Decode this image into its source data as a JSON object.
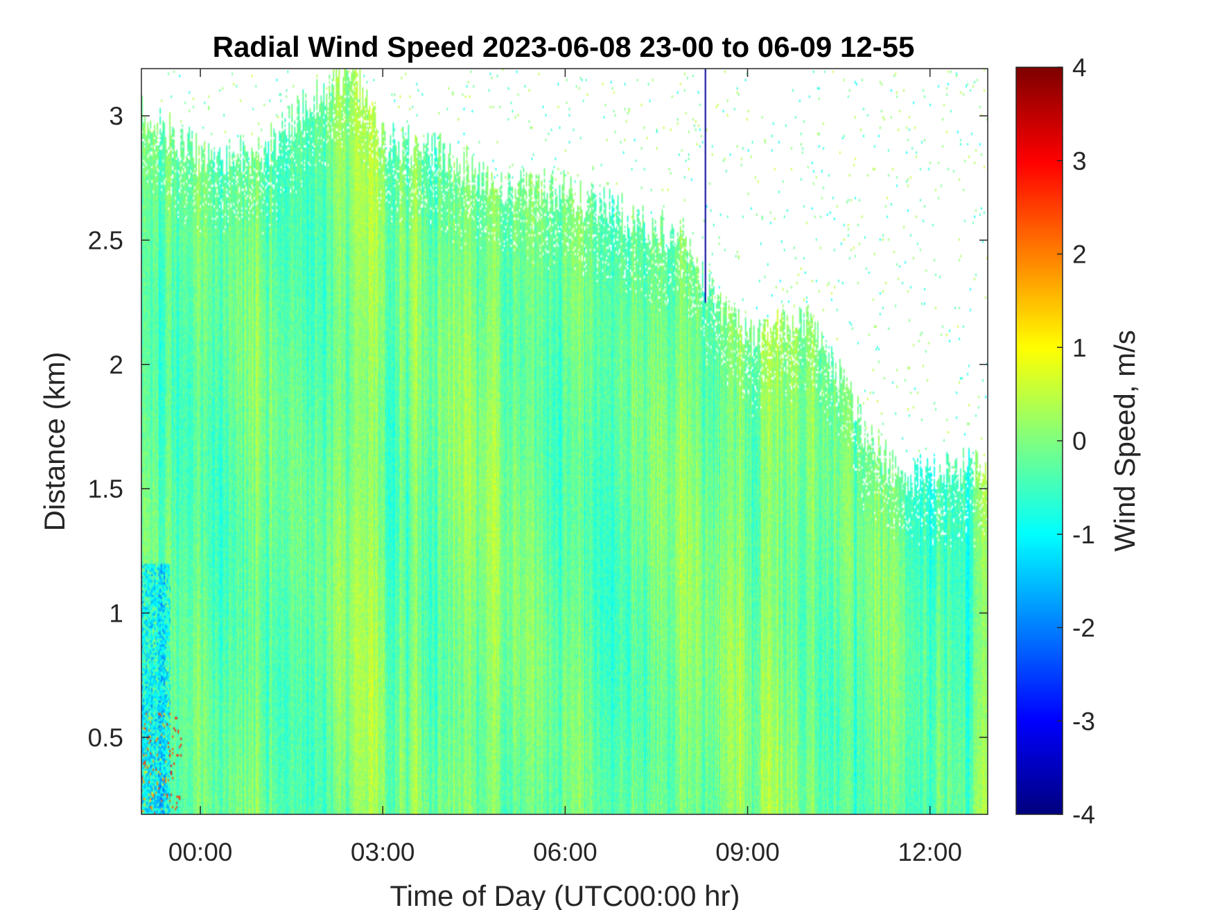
{
  "chart_data": {
    "type": "heatmap",
    "title": "Radial Wind Speed 2023-06-08 23-00 to 06-09 12-55",
    "xlabel": "Time of Day (UTC00:00 hr)",
    "ylabel": "Distance (km)",
    "colorbar_label": "Wind Speed, m/s",
    "colormap": "jet",
    "x_ticks": [
      "00:00",
      "03:00",
      "06:00",
      "09:00",
      "12:00"
    ],
    "x_tick_hours": [
      0,
      3,
      6,
      9,
      12
    ],
    "xlim_hours": [
      -0.97,
      12.95
    ],
    "y_ticks": [
      "0.5",
      "1",
      "1.5",
      "2",
      "2.5",
      "3"
    ],
    "y_tick_values": [
      0.5,
      1,
      1.5,
      2,
      2.5,
      3
    ],
    "ylim": [
      0.19,
      3.19
    ],
    "clim": [
      -4,
      4
    ],
    "colorbar_ticks": [
      "4",
      "3",
      "2",
      "1",
      "0",
      "-1",
      "-2",
      "-3",
      "-4"
    ],
    "colorbar_tick_values": [
      4,
      3,
      2,
      1,
      0,
      -1,
      -2,
      -3,
      -4
    ],
    "data_top_km_by_hour": {
      "hours": [
        -0.97,
        0,
        1,
        2,
        2.5,
        3,
        4,
        5,
        6,
        7,
        8,
        8.3,
        9,
        10,
        11,
        11.5,
        12,
        12.95
      ],
      "top_km": [
        3.0,
        2.85,
        2.85,
        3.1,
        3.19,
        2.9,
        2.85,
        2.7,
        2.7,
        2.6,
        2.5,
        2.3,
        2.1,
        2.2,
        1.7,
        1.55,
        1.55,
        1.6
      ]
    },
    "typical_speed_m_s": [
      -1,
      0.6
    ],
    "grid": false
  }
}
